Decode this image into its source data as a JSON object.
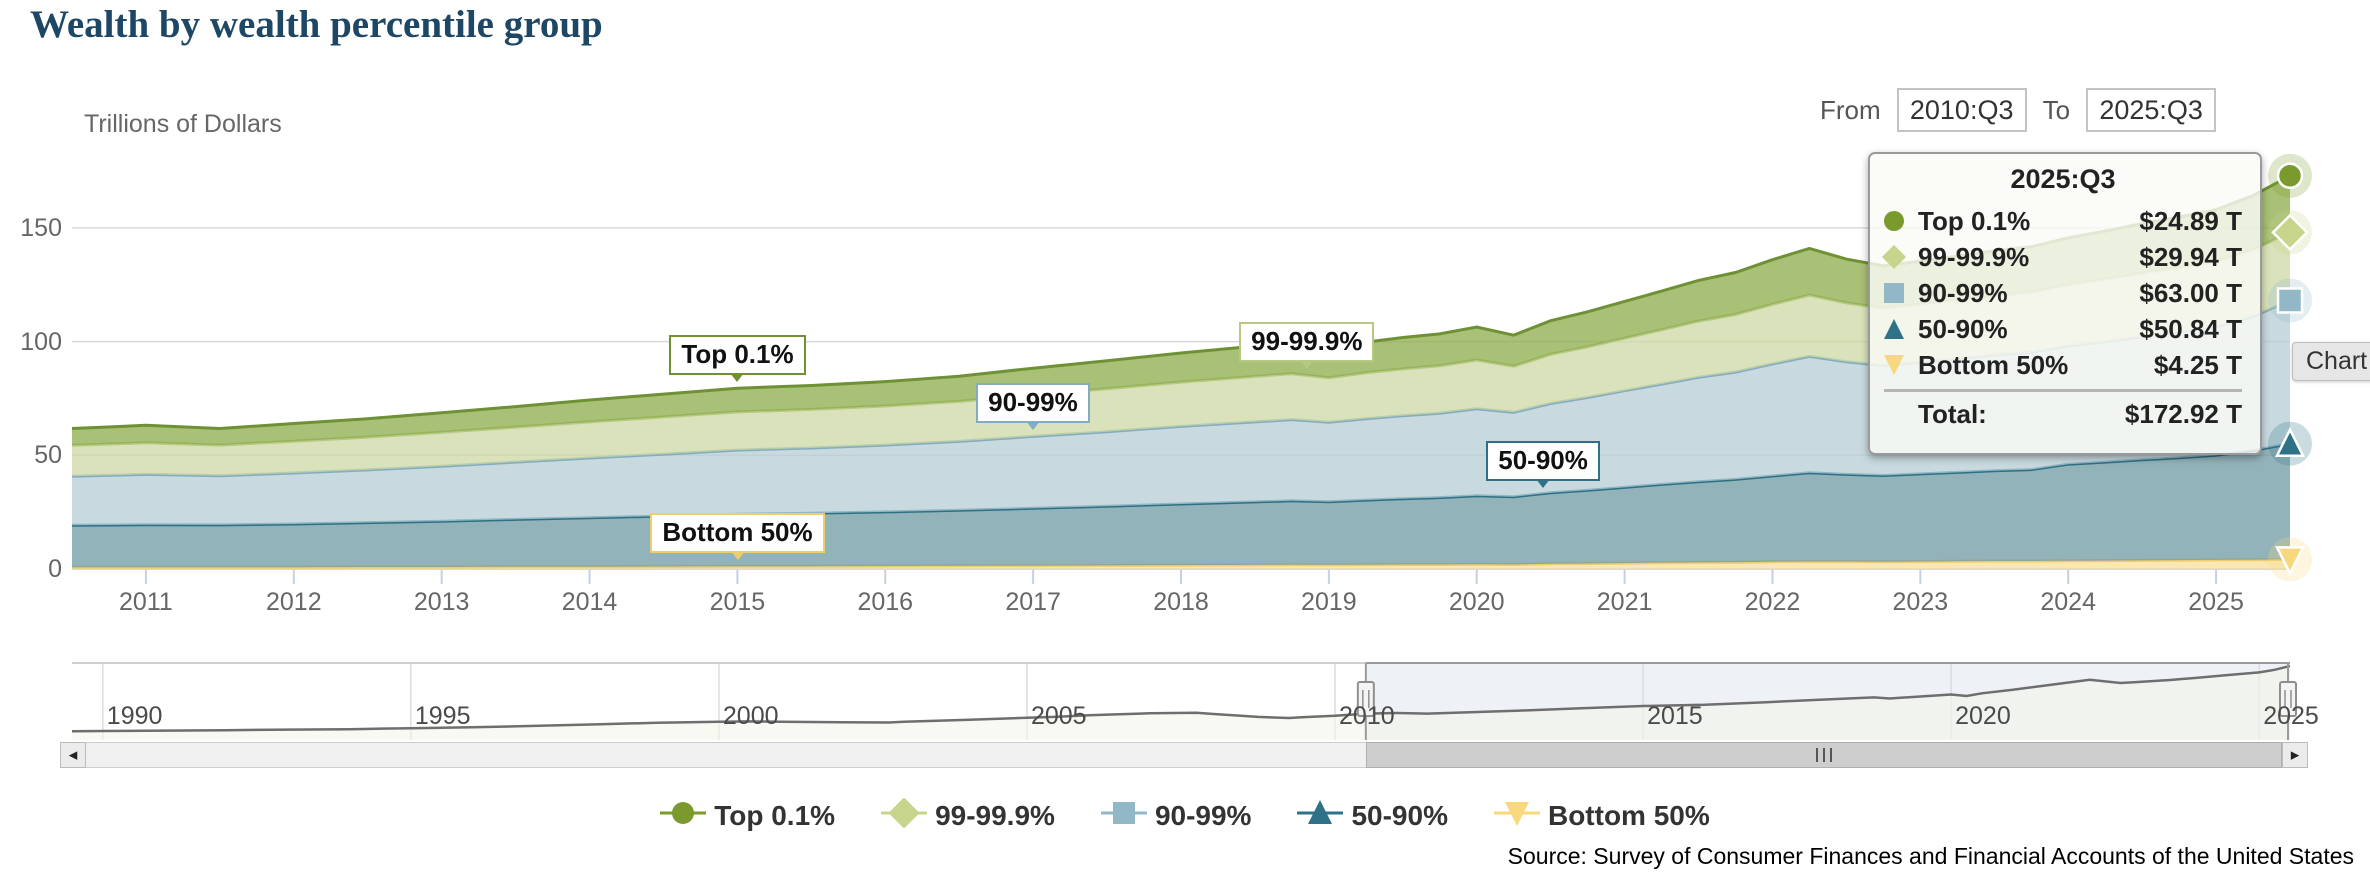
{
  "header": {
    "title": "Wealth by wealth percentile group",
    "units": "Trillions of Dollars"
  },
  "range": {
    "from_label": "From",
    "from_value": "2010:Q3",
    "to_label": "To",
    "to_value": "2025:Q3"
  },
  "tooltip": {
    "period": "2025:Q3",
    "rows": [
      {
        "label": "Top 0.1%",
        "value": "$24.89 T"
      },
      {
        "label": "99-99.9%",
        "value": "$29.94 T"
      },
      {
        "label": "90-99%",
        "value": "$63.00 T"
      },
      {
        "label": "50-90%",
        "value": "$50.84 T"
      },
      {
        "label": "Bottom 50%",
        "value": "$4.25 T"
      }
    ],
    "total_label": "Total:",
    "total_value": "$172.92 T"
  },
  "chart_label": "Chart",
  "legend": {
    "items": [
      "Top 0.1%",
      "99-99.9%",
      "90-99%",
      "50-90%",
      "Bottom 50%"
    ]
  },
  "source": "Source: Survey of Consumer Finances and Financial Accounts of the United States",
  "chart_data": {
    "type": "area",
    "stacked": true,
    "title": "Wealth by wealth percentile group",
    "ylabel": "Trillions of Dollars",
    "yaxis": {
      "ticks": [
        0,
        50,
        100,
        150
      ],
      "range": [
        0,
        176
      ],
      "grid": true
    },
    "xaxis": {
      "ticks": [
        2011,
        2012,
        2013,
        2014,
        2015,
        2016,
        2017,
        2018,
        2019,
        2020,
        2021,
        2022,
        2023,
        2024,
        2025
      ],
      "range": [
        2010.5,
        2025.5
      ]
    },
    "x": [
      2010.5,
      2011.0,
      2011.5,
      2012.0,
      2012.5,
      2013.0,
      2013.5,
      2014.0,
      2014.5,
      2015.0,
      2015.5,
      2016.0,
      2016.5,
      2017.0,
      2017.5,
      2018.0,
      2018.5,
      2018.75,
      2019.0,
      2019.25,
      2019.5,
      2019.75,
      2020.0,
      2020.25,
      2020.5,
      2020.75,
      2021.0,
      2021.25,
      2021.5,
      2021.75,
      2022.0,
      2022.25,
      2022.5,
      2022.75,
      2023.0,
      2023.25,
      2023.5,
      2023.75,
      2024.0,
      2024.25,
      2024.5,
      2024.75,
      2025.0,
      2025.25,
      2025.5
    ],
    "series": [
      {
        "name": "Bottom 50%",
        "marker": "triangle-down",
        "fill": "#f8df99",
        "line": "#eecd6e",
        "marker_color": "#f7d87d",
        "values": [
          0.8,
          0.8,
          0.8,
          0.8,
          0.9,
          0.9,
          1.0,
          1.0,
          1.1,
          1.2,
          1.2,
          1.3,
          1.4,
          1.5,
          1.6,
          1.7,
          1.8,
          1.9,
          1.8,
          1.9,
          2.0,
          2.0,
          2.1,
          2.0,
          2.3,
          2.4,
          2.6,
          2.8,
          2.9,
          3.0,
          3.2,
          3.3,
          3.3,
          3.2,
          3.3,
          3.4,
          3.5,
          3.5,
          3.6,
          3.7,
          3.8,
          3.9,
          4.0,
          4.1,
          4.25
        ]
      },
      {
        "name": "50-90%",
        "marker": "triangle",
        "fill": "#6f9aa4",
        "line": "#2d7187",
        "marker_color": "#2f7288",
        "values": [
          18.4,
          18.7,
          18.6,
          19.0,
          19.5,
          20.1,
          20.8,
          21.5,
          22.2,
          22.9,
          23.3,
          23.8,
          24.4,
          25.2,
          26.0,
          26.9,
          27.7,
          28.1,
          27.8,
          28.4,
          28.9,
          29.4,
          30.1,
          29.8,
          31.2,
          32.2,
          33.3,
          34.4,
          35.5,
          36.4,
          37.7,
          39.0,
          38.3,
          37.9,
          38.5,
          39.1,
          39.7,
          40.2,
          42.5,
          43.3,
          44.2,
          45.0,
          46.0,
          48.0,
          50.84
        ]
      },
      {
        "name": "90-99%",
        "marker": "square",
        "fill": "#b6cdd6",
        "line": "#83acc0",
        "marker_color": "#92b8c8",
        "values": [
          21.6,
          22.1,
          21.6,
          22.4,
          23.2,
          24.2,
          25.2,
          26.3,
          27.2,
          28.2,
          28.7,
          29.4,
          30.3,
          31.6,
          32.8,
          34.1,
          35.2,
          35.7,
          34.9,
          35.8,
          36.5,
          37.1,
          38.3,
          37.1,
          39.3,
          40.8,
          42.5,
          44.1,
          45.9,
          47.2,
          49.3,
          51.2,
          49.5,
          48.4,
          49.2,
          50.0,
          50.9,
          51.6,
          52.0,
          53.0,
          54.2,
          55.3,
          56.5,
          59.0,
          63.0
        ]
      },
      {
        "name": "99-99.9%",
        "marker": "diamond",
        "fill": "#ccd8a3",
        "line": "#b5c983",
        "marker_color": "#c7d48c",
        "values": [
          13.6,
          13.9,
          13.5,
          14.0,
          14.4,
          14.9,
          15.4,
          15.9,
          16.4,
          16.8,
          17.0,
          17.2,
          17.6,
          18.3,
          18.9,
          19.5,
          20.0,
          20.2,
          19.6,
          20.2,
          20.6,
          20.9,
          21.4,
          20.3,
          21.6,
          22.3,
          23.1,
          23.9,
          24.7,
          25.3,
          26.2,
          27.0,
          25.9,
          25.2,
          25.5,
          25.8,
          26.1,
          26.4,
          26.9,
          27.4,
          27.9,
          28.3,
          28.7,
          29.3,
          29.94
        ]
      },
      {
        "name": "Top 0.1%",
        "marker": "circle",
        "fill": "#8cab49",
        "line": "#6f9135",
        "marker_color": "#7a9a2e",
        "values": [
          7.4,
          7.7,
          7.3,
          7.8,
          8.1,
          8.6,
          9.0,
          9.6,
          10.0,
          10.4,
          10.5,
          10.7,
          11.1,
          11.7,
          12.3,
          12.8,
          13.3,
          13.6,
          13.0,
          13.5,
          13.8,
          14.0,
          14.5,
          13.6,
          14.8,
          15.4,
          16.2,
          17.0,
          17.9,
          18.5,
          19.6,
          20.5,
          19.3,
          18.6,
          18.9,
          19.3,
          19.7,
          20.0,
          20.6,
          21.2,
          21.8,
          22.3,
          22.8,
          23.8,
          24.89
        ]
      }
    ],
    "navigator": {
      "range": [
        1989.5,
        2025.5
      ],
      "selected": [
        2010.5,
        2025.5
      ],
      "ticks": [
        1990,
        1995,
        2000,
        2005,
        2010,
        2015,
        2020,
        2025
      ],
      "x": [
        1989.5,
        1990,
        1991,
        1992,
        1993,
        1994,
        1995,
        1996,
        1997,
        1998,
        1999,
        2000,
        2000.5,
        2001,
        2002,
        2002.75,
        2003,
        2004,
        2005,
        2005.5,
        2006,
        2006.5,
        2007,
        2007.75,
        2008,
        2008.75,
        2009.25,
        2009.5,
        2010,
        2010.5,
        2011,
        2011.5,
        2012,
        2013,
        2014,
        2015,
        2016,
        2017,
        2018,
        2018.75,
        2019,
        2019.5,
        2020,
        2020.25,
        2020.5,
        2021,
        2021.5,
        2022,
        2022.25,
        2022.75,
        2023,
        2023.5,
        2024,
        2024.5,
        2025,
        2025.25,
        2025.5
      ],
      "total": [
        20.5,
        21.0,
        22.0,
        23.0,
        24.2,
        25.3,
        27.5,
        29.8,
        33.0,
        36.5,
        40.5,
        42.5,
        43.5,
        42.5,
        41.5,
        40.8,
        42.5,
        47.0,
        52.0,
        54.5,
        58.0,
        60.0,
        62.5,
        63.5,
        61.0,
        54.0,
        51.5,
        53.5,
        56.5,
        61.8,
        63.2,
        61.8,
        64.0,
        68.7,
        74.3,
        79.5,
        82.4,
        88.3,
        95.0,
        99.5,
        97.1,
        101.8,
        106.4,
        102.8,
        109.2,
        117.7,
        126.9,
        136.0,
        141.0,
        133.3,
        135.4,
        139.9,
        145.6,
        151.9,
        158.0,
        164.1,
        172.92
      ]
    }
  }
}
